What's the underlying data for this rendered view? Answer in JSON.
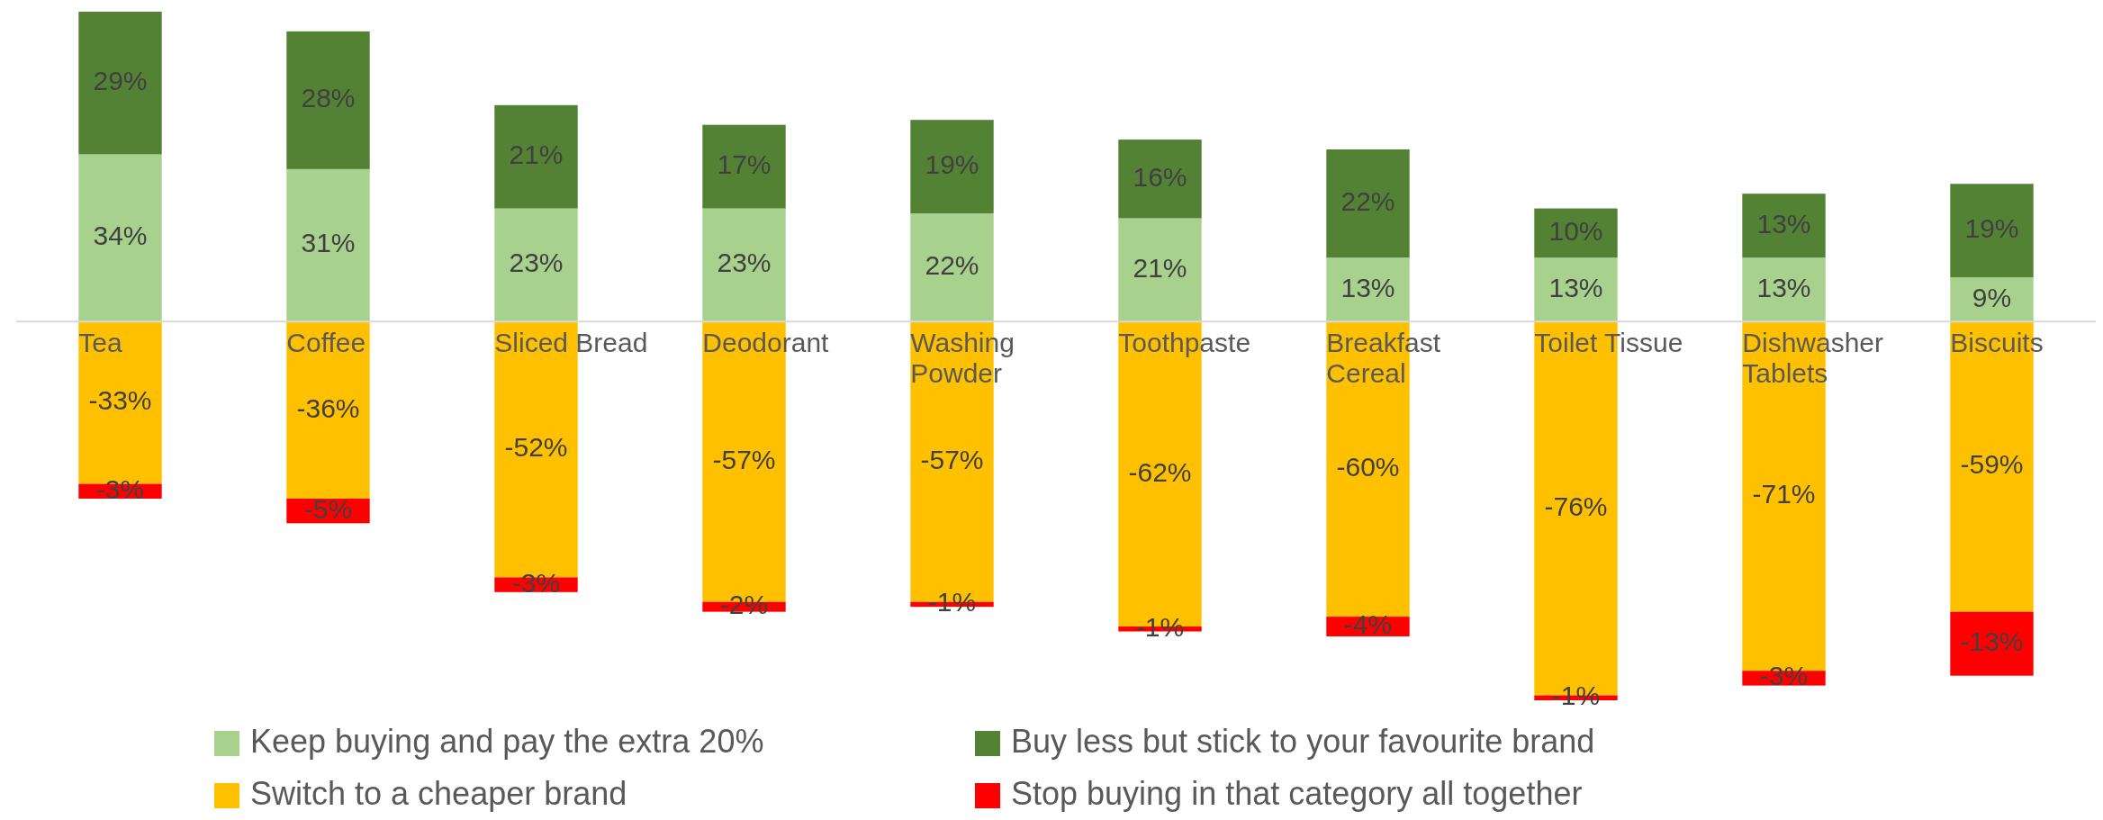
{
  "chart_data": {
    "type": "bar",
    "stacked": true,
    "categories": [
      "Tea",
      "Coffee",
      "Sliced Bread",
      "Deodorant",
      "Washing Powder",
      "Toothpaste",
      "Breakfast Cereal",
      "Toilet Tissue",
      "Dishwasher Tablets",
      "Biscuits"
    ],
    "legend": "bottom",
    "series": [
      {
        "name": "Keep buying and pay the extra 20%",
        "color": "#a9d18e",
        "values": [
          34,
          31,
          23,
          23,
          22,
          21,
          13,
          13,
          13,
          9
        ],
        "value_labels": [
          "34%",
          "31%",
          "23%",
          "23%",
          "22%",
          "21%",
          "13%",
          "13%",
          "13%",
          "9%"
        ]
      },
      {
        "name": "Buy less but stick to your favourite brand",
        "color": "#548235",
        "values": [
          29,
          28,
          21,
          17,
          19,
          16,
          22,
          10,
          13,
          19
        ],
        "value_labels": [
          "29%",
          "28%",
          "21%",
          "17%",
          "19%",
          "16%",
          "22%",
          "10%",
          "13%",
          "19%"
        ]
      },
      {
        "name": "Switch to a cheaper brand",
        "color": "#ffc000",
        "values": [
          -33,
          -36,
          -52,
          -57,
          -57,
          -62,
          -60,
          -76,
          -71,
          -59
        ],
        "value_labels": [
          "-33%",
          "-36%",
          "-52%",
          "-57%",
          "-57%",
          "-62%",
          "-60%",
          "-76%",
          "-71%",
          "-59%"
        ]
      },
      {
        "name": "Stop buying in that category all together",
        "color": "#ff0000",
        "values": [
          -3,
          -5,
          -3,
          -2,
          -1,
          -1,
          -4,
          -1,
          -3,
          -13
        ],
        "value_labels": [
          "-3%",
          "-5%",
          "-3%",
          "-2%",
          "-1%",
          "-1%",
          "-4%",
          "-1%",
          "-3%",
          "-13%"
        ]
      }
    ]
  }
}
